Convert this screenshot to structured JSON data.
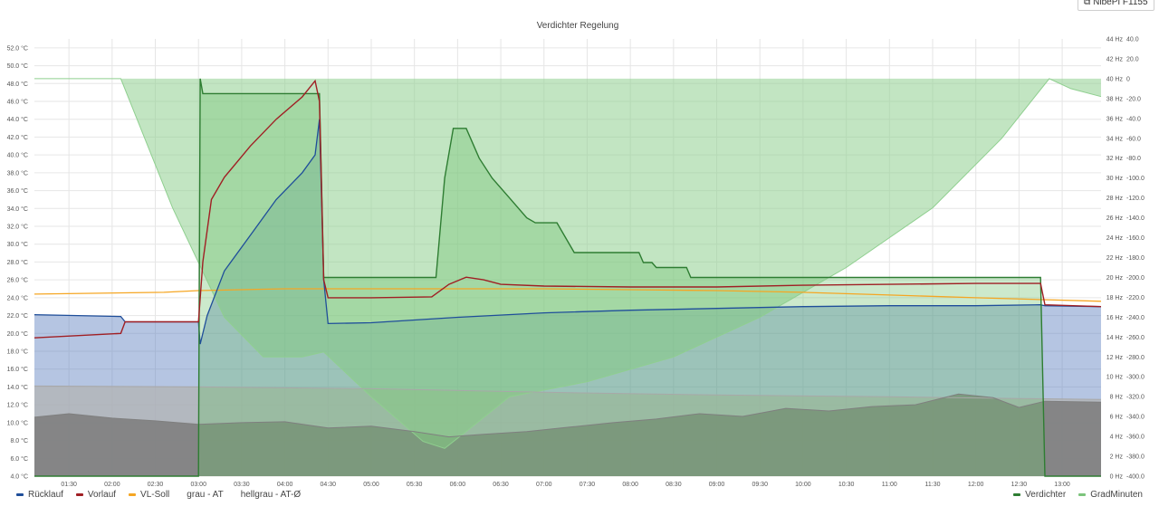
{
  "header": {
    "link_label": "NibePI F1155",
    "link_icon": "external-link-icon"
  },
  "chart_data": {
    "type": "line",
    "title": "Verdichter Regelung",
    "x": {
      "ticks": [
        "01:30",
        "02:00",
        "02:30",
        "03:00",
        "03:30",
        "04:00",
        "04:30",
        "05:00",
        "05:30",
        "06:00",
        "06:30",
        "07:00",
        "07:30",
        "08:00",
        "08:30",
        "09:00",
        "09:30",
        "10:00",
        "10:30",
        "11:00",
        "11:30",
        "12:00",
        "12:30",
        "13:00"
      ],
      "range_hours": [
        1.1,
        13.45
      ]
    },
    "y_left": {
      "unit": "°C",
      "ylim": [
        4,
        53
      ],
      "ticks": [
        "4.0 °C",
        "6.0 °C",
        "8.0 °C",
        "10.0 °C",
        "12.0 °C",
        "14.0 °C",
        "16.0 °C",
        "18.0 °C",
        "20.0 °C",
        "22.0 °C",
        "24.0 °C",
        "26.0 °C",
        "28.0 °C",
        "30.0 °C",
        "32.0 °C",
        "34.0 °C",
        "36.0 °C",
        "38.0 °C",
        "40.0 °C",
        "42.0 °C",
        "44.0 °C",
        "46.0 °C",
        "48.0 °C",
        "50.0 °C",
        "52.0 °C"
      ]
    },
    "y_mid": {
      "unit": "Hz",
      "ylim": [
        0,
        44
      ],
      "ticks": [
        "0 Hz",
        "2 Hz",
        "4 Hz",
        "6 Hz",
        "8 Hz",
        "10 Hz",
        "12 Hz",
        "14 Hz",
        "16 Hz",
        "18 Hz",
        "20 Hz",
        "22 Hz",
        "24 Hz",
        "26 Hz",
        "28 Hz",
        "30 Hz",
        "32 Hz",
        "34 Hz",
        "36 Hz",
        "38 Hz",
        "40 Hz",
        "42 Hz",
        "44 Hz"
      ]
    },
    "y_right": {
      "ylim": [
        -400,
        40
      ],
      "ticks": [
        "-400.0",
        "-380.0",
        "-360.0",
        "-340.0",
        "-320.0",
        "-300.0",
        "-280.0",
        "-260.0",
        "-240.0",
        "-220.0",
        "-200.0",
        "-180.0",
        "-160.0",
        "-140.0",
        "-120.0",
        "-100.0",
        "-80.0",
        "-60.0",
        "-40.0",
        "-20.0",
        "0",
        "20.0",
        "40.0"
      ]
    },
    "grid": true,
    "series": [
      {
        "name": "Rücklauf",
        "axis": "left",
        "color": "#1f4e9a",
        "fill": "#5b7fbf",
        "points": [
          [
            1.1,
            22.1
          ],
          [
            2.1,
            21.9
          ],
          [
            2.15,
            21.3
          ],
          [
            2.6,
            21.3
          ],
          [
            3.0,
            21.3
          ],
          [
            3.02,
            18.8
          ],
          [
            3.1,
            22
          ],
          [
            3.3,
            27
          ],
          [
            3.6,
            31
          ],
          [
            3.9,
            35
          ],
          [
            4.2,
            38
          ],
          [
            4.35,
            40
          ],
          [
            4.4,
            44
          ],
          [
            4.45,
            26
          ],
          [
            4.5,
            21.1
          ],
          [
            5.0,
            21.2
          ],
          [
            6.0,
            21.8
          ],
          [
            7.0,
            22.3
          ],
          [
            8.0,
            22.6
          ],
          [
            9.0,
            22.8
          ],
          [
            10.0,
            23.0
          ],
          [
            11.0,
            23.1
          ],
          [
            12.0,
            23.1
          ],
          [
            12.75,
            23.2
          ],
          [
            12.8,
            23.1
          ],
          [
            13.45,
            23.0
          ]
        ]
      },
      {
        "name": "Vorlauf",
        "axis": "left",
        "color": "#a01f24",
        "points": [
          [
            1.1,
            19.5
          ],
          [
            2.1,
            20.0
          ],
          [
            2.15,
            21.3
          ],
          [
            3.0,
            21.3
          ],
          [
            3.05,
            28
          ],
          [
            3.15,
            35
          ],
          [
            3.3,
            37.5
          ],
          [
            3.6,
            41
          ],
          [
            3.9,
            44
          ],
          [
            4.2,
            46.5
          ],
          [
            4.35,
            48.3
          ],
          [
            4.4,
            46
          ],
          [
            4.45,
            26
          ],
          [
            4.5,
            24.0
          ],
          [
            5.0,
            24.0
          ],
          [
            5.7,
            24.1
          ],
          [
            5.9,
            25.5
          ],
          [
            6.1,
            26.3
          ],
          [
            6.3,
            26.0
          ],
          [
            6.5,
            25.5
          ],
          [
            7.0,
            25.3
          ],
          [
            8.0,
            25.2
          ],
          [
            9.0,
            25.2
          ],
          [
            10.0,
            25.4
          ],
          [
            11.0,
            25.5
          ],
          [
            12.0,
            25.6
          ],
          [
            12.75,
            25.6
          ],
          [
            12.8,
            23.2
          ],
          [
            13.45,
            23.0
          ]
        ]
      },
      {
        "name": "VL-Soll",
        "axis": "left",
        "color": "#f5a623",
        "points": [
          [
            1.1,
            24.4
          ],
          [
            2.6,
            24.6
          ],
          [
            3.0,
            24.8
          ],
          [
            4.0,
            25.0
          ],
          [
            5.0,
            25.0
          ],
          [
            6.0,
            25.0
          ],
          [
            7.0,
            25.0
          ],
          [
            8.0,
            24.9
          ],
          [
            9.0,
            24.8
          ],
          [
            10.0,
            24.6
          ],
          [
            11.0,
            24.3
          ],
          [
            12.0,
            24.0
          ],
          [
            13.45,
            23.6
          ]
        ]
      },
      {
        "name": "grau - AT",
        "axis": "left",
        "color": "#7f7f7f",
        "fill": "#7f7f7f",
        "points": [
          [
            1.1,
            10.6
          ],
          [
            1.5,
            11.0
          ],
          [
            2.0,
            10.5
          ],
          [
            2.5,
            10.2
          ],
          [
            3.0,
            9.8
          ],
          [
            3.5,
            10.0
          ],
          [
            4.0,
            10.1
          ],
          [
            4.5,
            9.4
          ],
          [
            5.0,
            9.6
          ],
          [
            5.5,
            9.0
          ],
          [
            5.9,
            8.4
          ],
          [
            6.3,
            8.7
          ],
          [
            6.8,
            9.0
          ],
          [
            7.3,
            9.5
          ],
          [
            7.8,
            10.0
          ],
          [
            8.3,
            10.4
          ],
          [
            8.8,
            11.0
          ],
          [
            9.3,
            10.7
          ],
          [
            9.8,
            11.6
          ],
          [
            10.3,
            11.3
          ],
          [
            10.8,
            11.8
          ],
          [
            11.3,
            12.0
          ],
          [
            11.8,
            13.2
          ],
          [
            12.2,
            12.8
          ],
          [
            12.5,
            11.7
          ],
          [
            12.8,
            12.4
          ],
          [
            13.45,
            12.3
          ]
        ]
      },
      {
        "name": "hellgrau - AT-Ø",
        "axis": "left",
        "color": "#a8a8a8",
        "fill": "#b3b3b3",
        "points": [
          [
            1.1,
            14.1
          ],
          [
            3.0,
            14.0
          ],
          [
            5.0,
            13.8
          ],
          [
            7.0,
            13.4
          ],
          [
            9.0,
            13.1
          ],
          [
            11.0,
            12.9
          ],
          [
            12.5,
            12.7
          ],
          [
            13.45,
            12.6
          ]
        ]
      },
      {
        "name": "Verdichter",
        "axis": "mid",
        "color": "#2e7d32",
        "fill": "#6cc06c",
        "points": [
          [
            1.1,
            0
          ],
          [
            3.0,
            0
          ],
          [
            3.02,
            40
          ],
          [
            3.05,
            38.5
          ],
          [
            4.4,
            38.5
          ],
          [
            4.45,
            20
          ],
          [
            5.6,
            20
          ],
          [
            5.75,
            20
          ],
          [
            5.85,
            30
          ],
          [
            5.95,
            35
          ],
          [
            6.1,
            35
          ],
          [
            6.25,
            32
          ],
          [
            6.4,
            30
          ],
          [
            6.6,
            28
          ],
          [
            6.8,
            26
          ],
          [
            6.9,
            25.5
          ],
          [
            7.15,
            25.5
          ],
          [
            7.25,
            24
          ],
          [
            7.35,
            22.5
          ],
          [
            8.1,
            22.5
          ],
          [
            8.15,
            21.5
          ],
          [
            8.25,
            21.5
          ],
          [
            8.3,
            21
          ],
          [
            8.65,
            21
          ],
          [
            8.7,
            20
          ],
          [
            12.75,
            20
          ],
          [
            12.8,
            0
          ],
          [
            13.45,
            0
          ]
        ]
      },
      {
        "name": "GradMinuten",
        "axis": "right",
        "color": "#8fcf8f",
        "fill": "#8fcf8f",
        "points": [
          [
            1.1,
            0
          ],
          [
            2.1,
            0
          ],
          [
            2.7,
            -130
          ],
          [
            3.3,
            -240
          ],
          [
            3.75,
            -280
          ],
          [
            4.2,
            -280
          ],
          [
            4.45,
            -275
          ],
          [
            5.0,
            -320
          ],
          [
            5.6,
            -365
          ],
          [
            5.85,
            -372
          ],
          [
            6.1,
            -355
          ],
          [
            6.6,
            -320
          ],
          [
            7.5,
            -305
          ],
          [
            8.5,
            -280
          ],
          [
            9.5,
            -240
          ],
          [
            10.5,
            -190
          ],
          [
            11.5,
            -130
          ],
          [
            12.3,
            -60
          ],
          [
            12.85,
            0
          ],
          [
            13.1,
            -10
          ],
          [
            13.45,
            -18
          ]
        ]
      }
    ]
  },
  "legend_left": [
    {
      "label": "Rücklauf",
      "color": "#1f4e9a"
    },
    {
      "label": "Vorlauf",
      "color": "#a01f24"
    },
    {
      "label": "VL-Soll",
      "color": "#f5a623"
    },
    {
      "label": "grau - AT",
      "color": ""
    },
    {
      "label": "hellgrau - AT-Ø",
      "color": ""
    }
  ],
  "legend_right": [
    {
      "label": "Verdichter",
      "color": "#2e7d32"
    },
    {
      "label": "GradMinuten",
      "color": "#7cc47c"
    }
  ]
}
